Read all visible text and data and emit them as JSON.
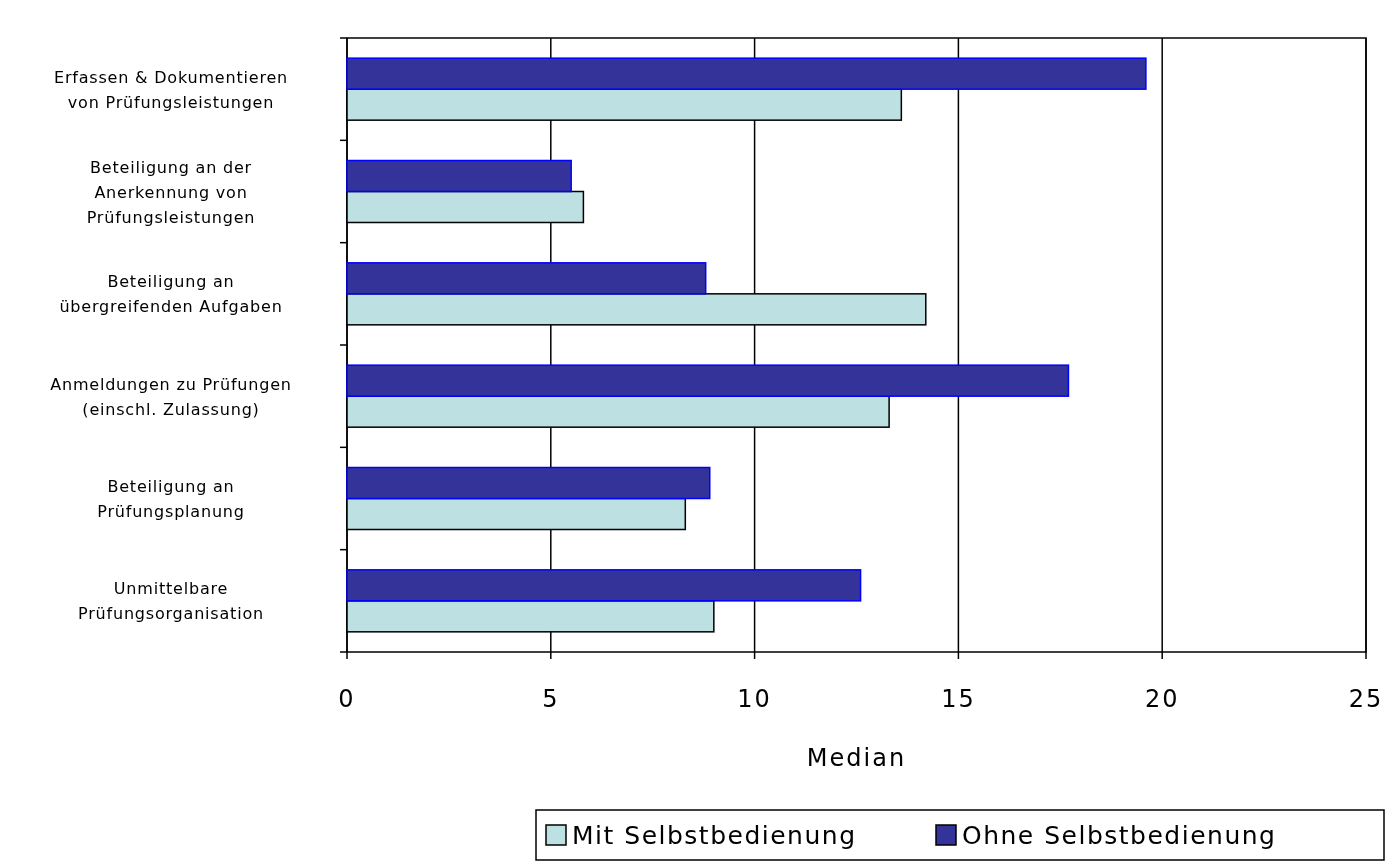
{
  "chart_data": {
    "type": "bar",
    "orientation": "horizontal",
    "xlabel": "Median",
    "categories": [
      "Erfassen & Dokumentieren\nvon Prüfungsleistungen",
      "Beteiligung an der\nAnerkennung von\nPrüfungsleistungen",
      "Beteiligung an\nübergreifenden Aufgaben",
      "Anmeldungen zu Prüfungen\n(einschl. Zulassung)",
      "Beteiligung an\nPrüfungsplanung",
      "Unmittelbare\nPrüfungsorganisation"
    ],
    "series": [
      {
        "name": "Mit Selbstbedienung",
        "color": "#bde0e3",
        "values": [
          13.6,
          5.8,
          14.2,
          13.3,
          8.3,
          9.0
        ]
      },
      {
        "name": "Ohne Selbstbedienung",
        "color": "#333399",
        "values": [
          19.6,
          5.5,
          8.8,
          17.7,
          8.9,
          12.6
        ]
      }
    ],
    "xlim": [
      0,
      25
    ],
    "xticks": [
      0,
      5,
      10,
      15,
      20,
      25
    ],
    "grid": "x",
    "legend": "bottom right"
  }
}
